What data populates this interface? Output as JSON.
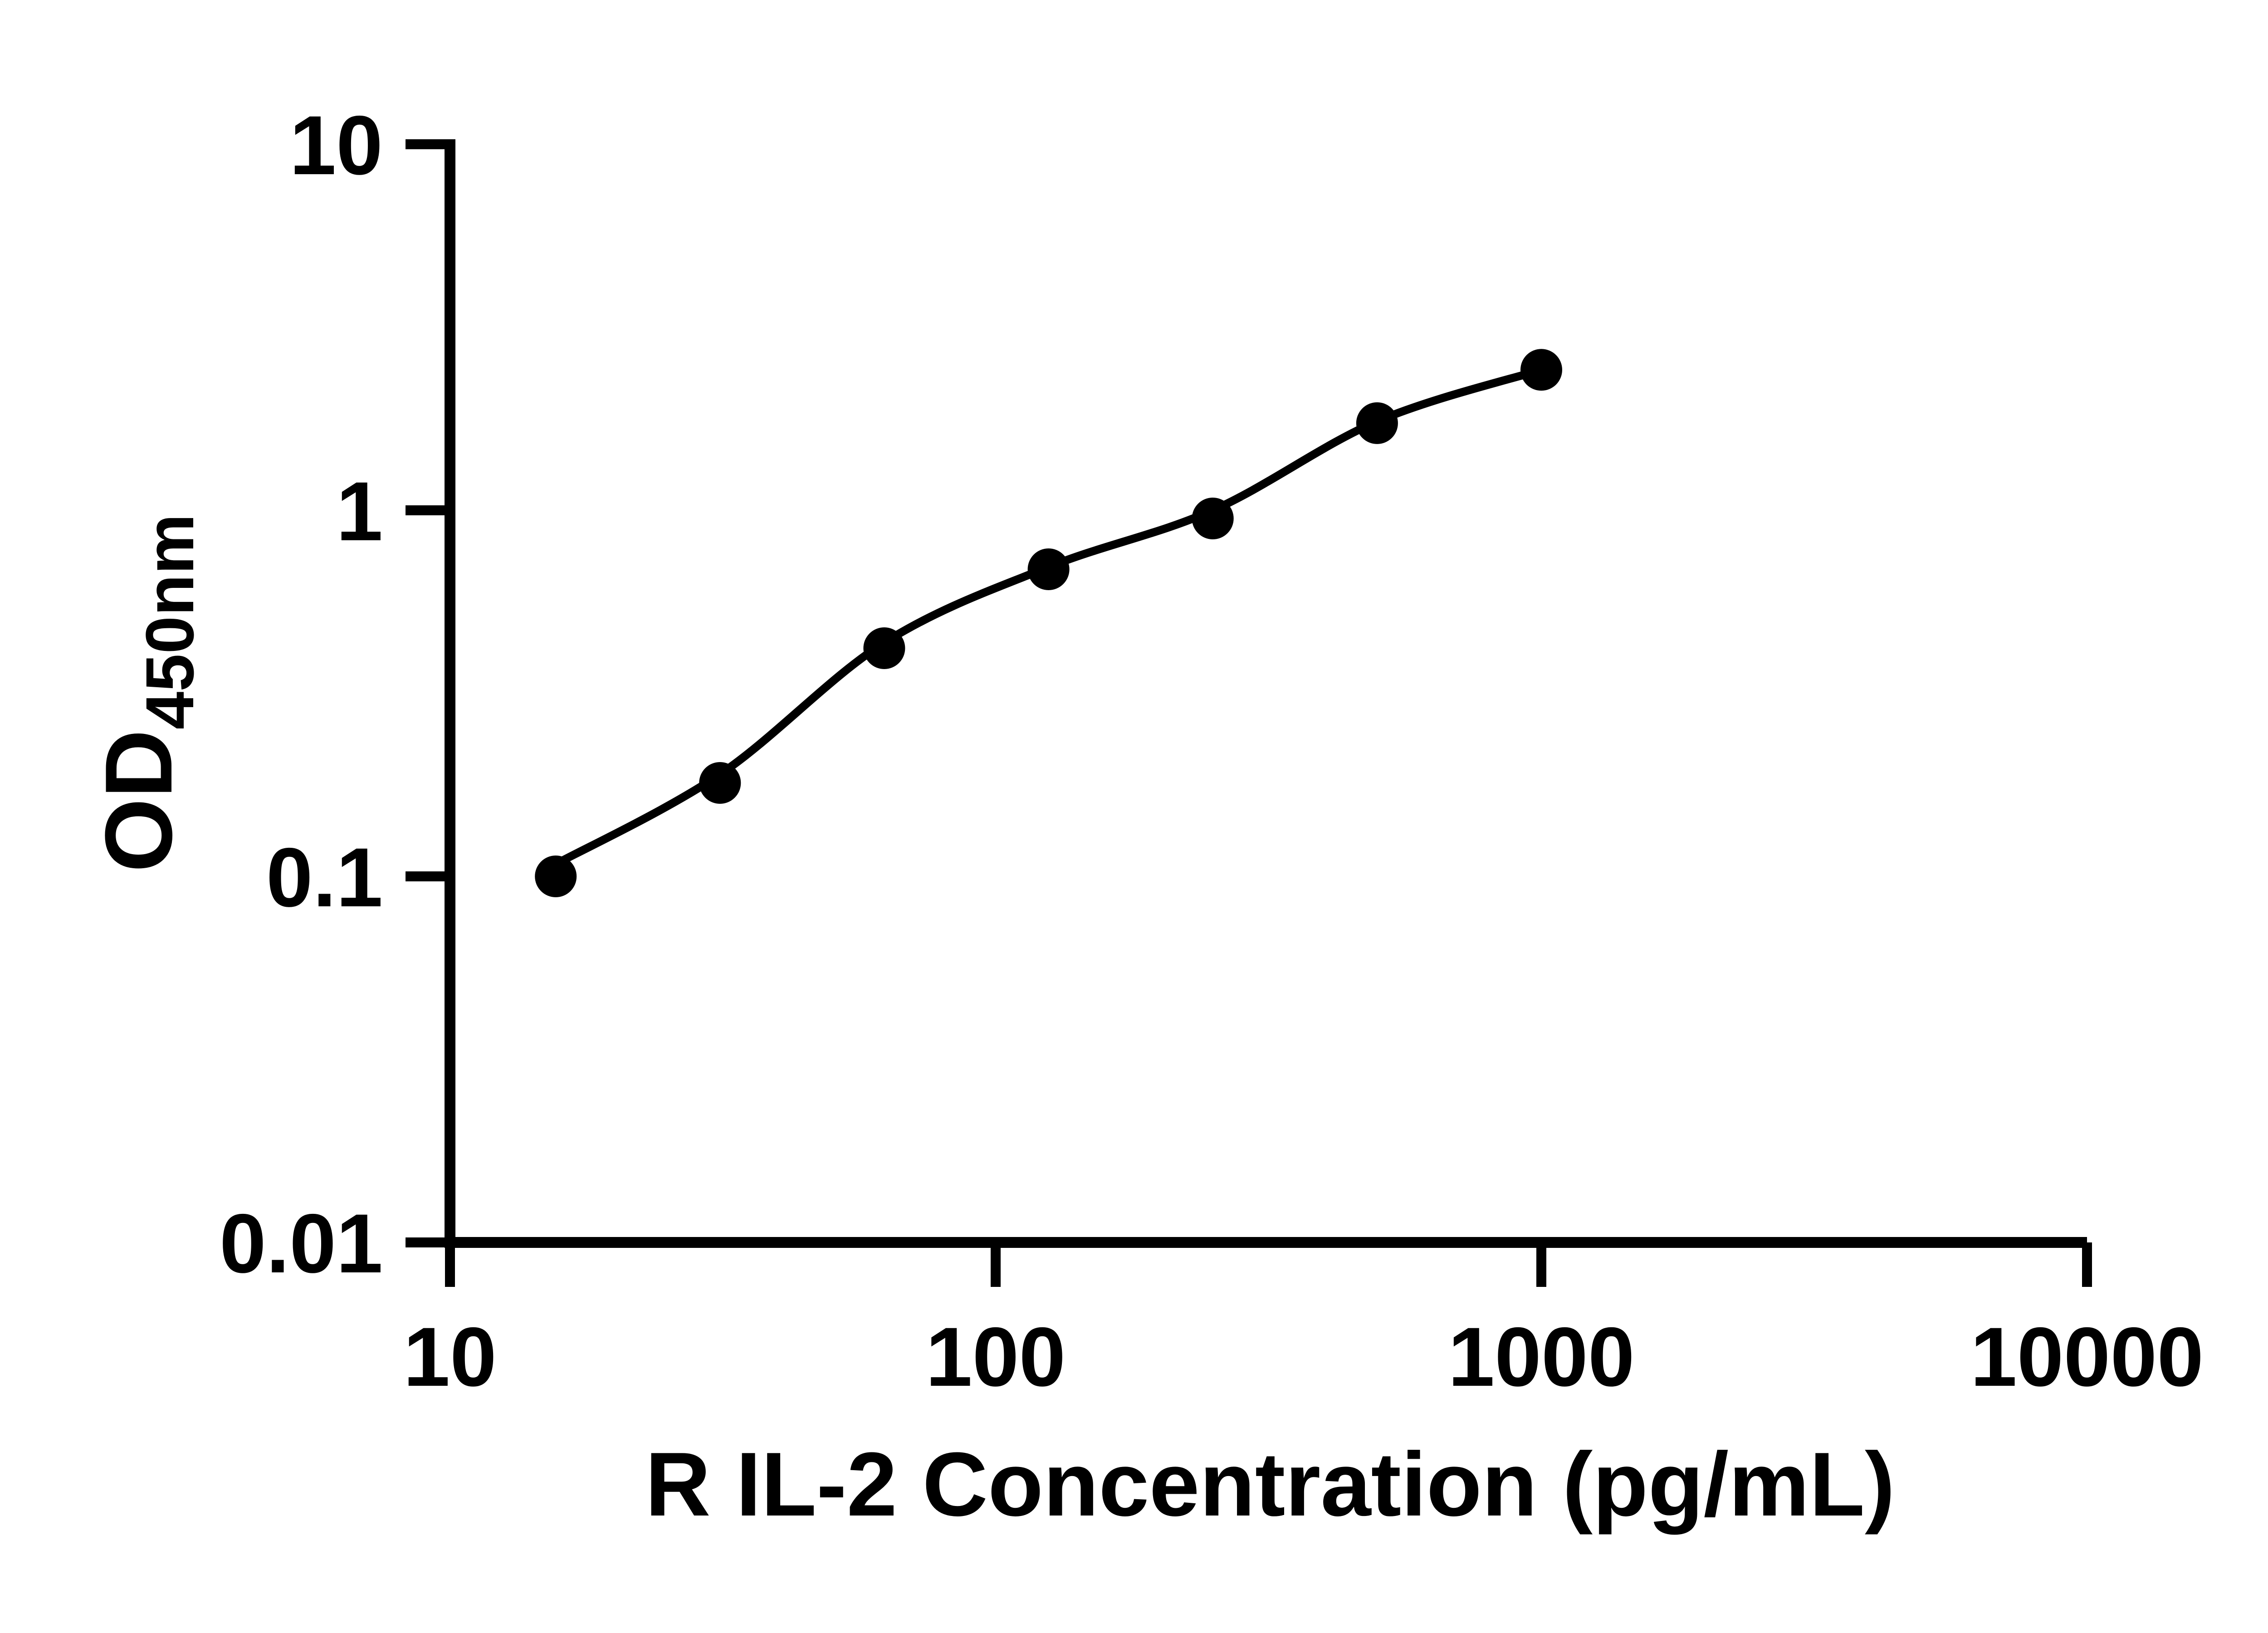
{
  "figure": {
    "background_color": "#ffffff",
    "ink_color": "#000000"
  },
  "chart_data": {
    "type": "scatter",
    "title": "",
    "xlabel": "R IL-2 Concentration (pg/mL)",
    "ylabel_main": "OD",
    "ylabel_sub": "450nm",
    "x_scale": "log",
    "y_scale": "log",
    "xlim": [
      10,
      10000
    ],
    "ylim": [
      0.01,
      10
    ],
    "x_ticks": [
      10,
      100,
      1000,
      10000
    ],
    "x_tick_labels": [
      "10",
      "100",
      "1000",
      "10000"
    ],
    "y_ticks": [
      10,
      1,
      0.1,
      0.01
    ],
    "y_tick_labels": [
      "10",
      "1",
      "0.1",
      "0.01"
    ],
    "grid": false,
    "legend": "none",
    "series": [
      {
        "name": "R IL-2 standard curve points",
        "marker": "filled-circle",
        "color": "#000000",
        "x": [
          15.625,
          31.25,
          62.5,
          125,
          250,
          500,
          1000
        ],
        "y": [
          0.1,
          0.18,
          0.42,
          0.69,
          0.95,
          1.73,
          2.42
        ]
      }
    ],
    "trend_line": {
      "name": "fitted standard curve",
      "style": "smooth solid curve through points, from first to last point",
      "color": "#000000",
      "x": [
        15.625,
        31.25,
        62.5,
        125,
        250,
        500,
        1000
      ],
      "y": [
        0.108,
        0.19,
        0.435,
        0.7,
        1.0,
        1.75,
        2.42
      ]
    }
  }
}
